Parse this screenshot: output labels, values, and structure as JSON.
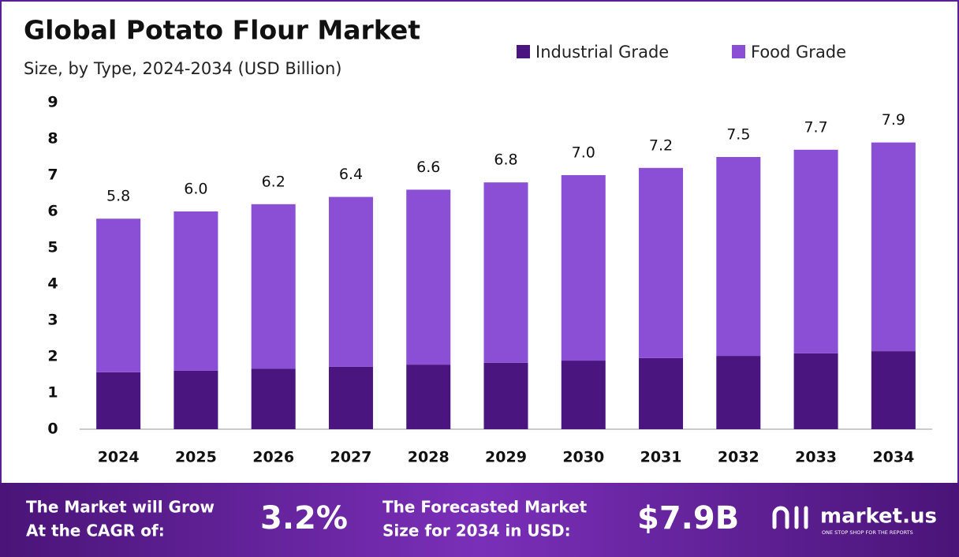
{
  "chart_data": {
    "type": "stacked-bar",
    "title": "Global Potato Flour Market",
    "subtitle": "Size, by Type, 2024-2034 (USD Billion)",
    "categories": [
      "2024",
      "2025",
      "2026",
      "2027",
      "2028",
      "2029",
      "2030",
      "2031",
      "2032",
      "2033",
      "2034"
    ],
    "series": [
      {
        "name": "Industrial Grade",
        "color": "#4b1580",
        "values": [
          1.57,
          1.61,
          1.67,
          1.72,
          1.78,
          1.83,
          1.89,
          1.96,
          2.02,
          2.09,
          2.15
        ]
      },
      {
        "name": "Food Grade",
        "color": "#8a4fd4",
        "values": [
          4.23,
          4.39,
          4.53,
          4.68,
          4.82,
          4.97,
          5.11,
          5.24,
          5.48,
          5.61,
          5.75
        ]
      }
    ],
    "totals": [
      5.8,
      6.0,
      6.2,
      6.4,
      6.6,
      6.8,
      7.0,
      7.2,
      7.5,
      7.7,
      7.9
    ],
    "total_labels": [
      "5.8",
      "6.0",
      "6.2",
      "6.4",
      "6.6",
      "6.8",
      "7.0",
      "7.2",
      "7.5",
      "7.7",
      "7.9"
    ],
    "ylim": [
      0,
      9
    ],
    "yticks": [
      0,
      1,
      2,
      3,
      4,
      5,
      6,
      7,
      8,
      9
    ],
    "grid": false,
    "legend": "top-right"
  },
  "footer": {
    "cagr_text": [
      "The Market will Grow",
      "At the CAGR of:"
    ],
    "cagr_value": "3.2%",
    "forecast_text": [
      "The Forecasted Market",
      "Size for 2034 in USD:"
    ],
    "forecast_value": "$7.9B",
    "brand": "market.us",
    "brand_tagline": "ONE STOP SHOP FOR THE REPORTS"
  }
}
